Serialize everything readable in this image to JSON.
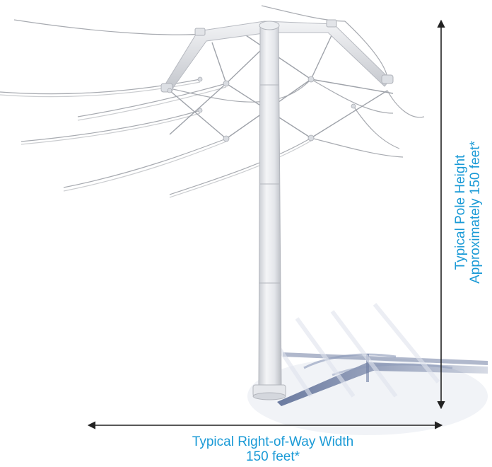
{
  "annotations": {
    "height": {
      "line1": "Typical Pole Height",
      "line2": "Approximately 150 feet*"
    },
    "width": {
      "line1": "Typical Right-of-Way Width",
      "line2": "150 feet*"
    }
  },
  "colors": {
    "label": "#1a9ad6",
    "dimension_arrow": "#222222",
    "structure": "#e6e8ec",
    "shadow": "#6f7ea3"
  },
  "illustration": "steel-monopole-transmission-structure"
}
